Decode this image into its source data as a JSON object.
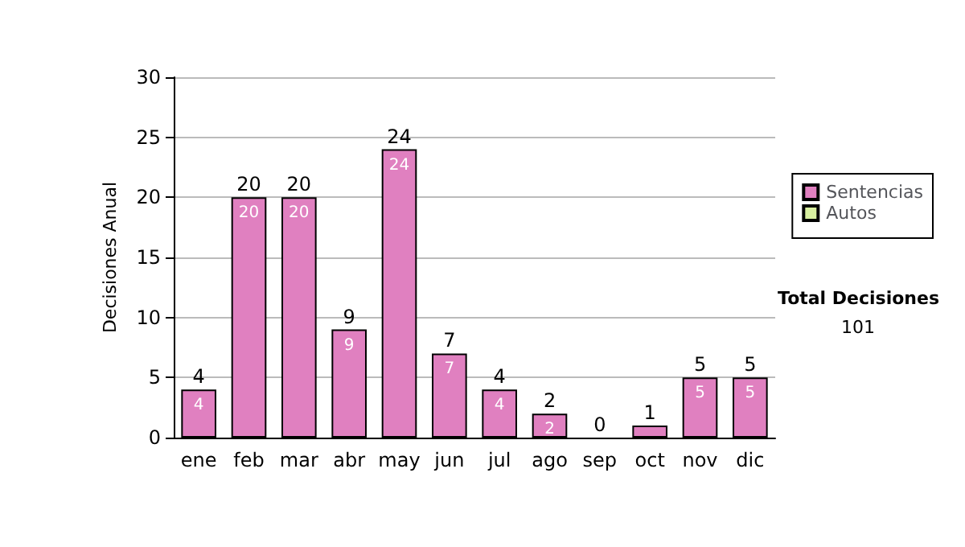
{
  "chart_data": {
    "type": "bar",
    "ylabel": "Decisiones Anual",
    "categories": [
      "ene",
      "feb",
      "mar",
      "abr",
      "may",
      "jun",
      "jul",
      "ago",
      "sep",
      "oct",
      "nov",
      "dic"
    ],
    "stacked": true,
    "series": [
      {
        "name": "Sentencias",
        "color": "#e080c0",
        "values": [
          4,
          20,
          20,
          9,
          24,
          7,
          4,
          2,
          0,
          1,
          5,
          5
        ],
        "value_labels": [
          "4",
          "20",
          "20",
          "9",
          "24",
          "7",
          "4",
          "2",
          null,
          null,
          "5",
          "5"
        ]
      },
      {
        "name": "Autos",
        "color": "#d8f0a0",
        "values": [
          0,
          0,
          0,
          0,
          0,
          0,
          0,
          0,
          0,
          0,
          0,
          0
        ]
      }
    ],
    "totals": [
      "4",
      "20",
      "20",
      "9",
      "24",
      "7",
      "4",
      "2",
      "0",
      "1",
      "5",
      "5"
    ],
    "ylim": [
      0,
      30
    ],
    "yticks": [
      0,
      5,
      10,
      15,
      20,
      25,
      30
    ],
    "grid": "y",
    "legend": "right",
    "annotations": [
      "Total Decisiones",
      "101"
    ]
  }
}
